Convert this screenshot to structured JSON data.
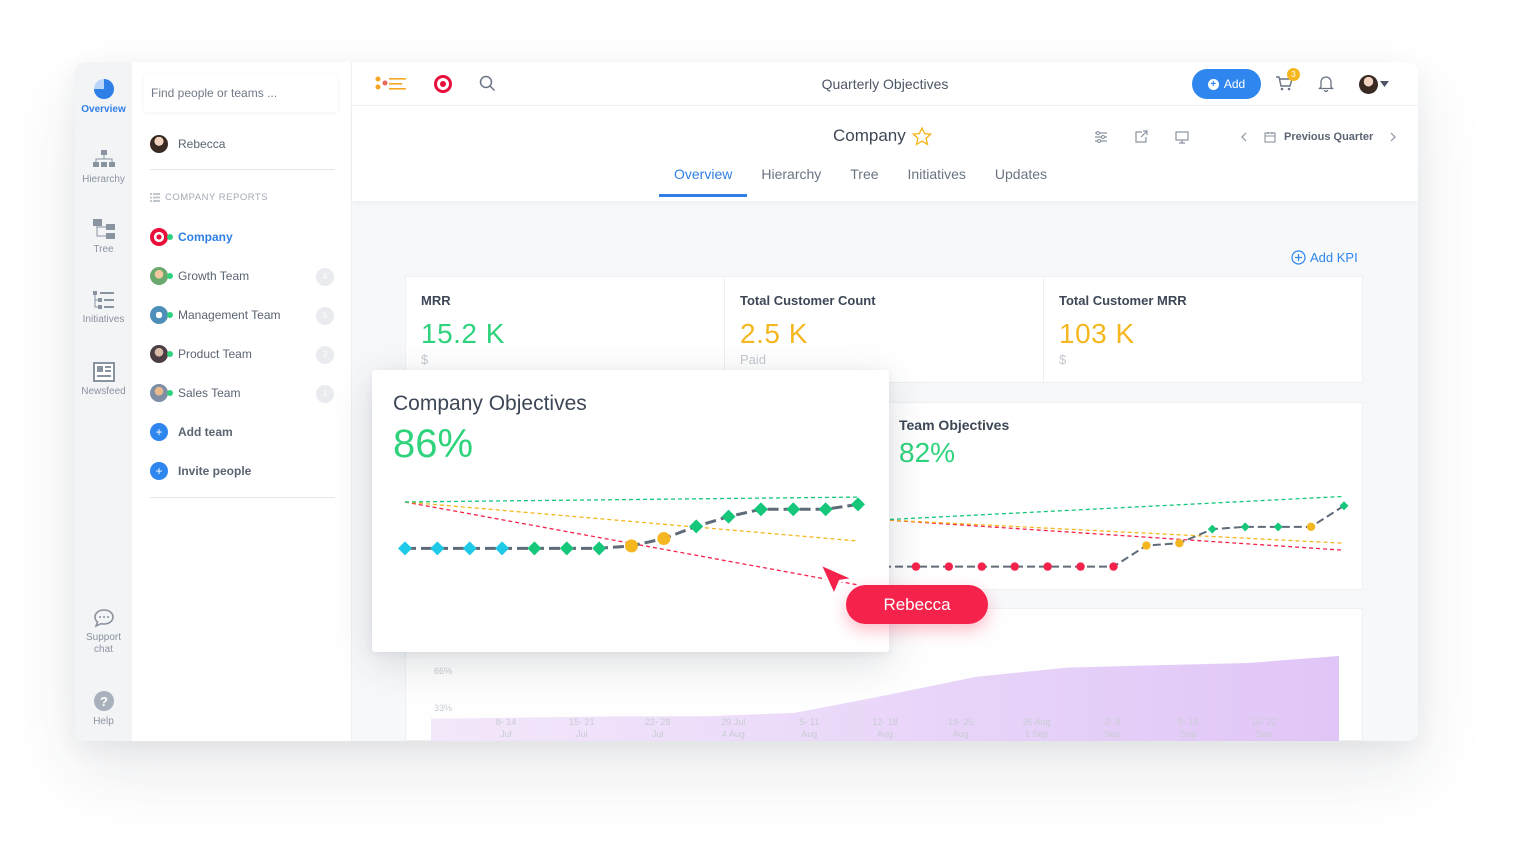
{
  "rail": [
    {
      "label": "Overview",
      "icon": "pie-chart-icon",
      "active": true
    },
    {
      "label": "Hierarchy",
      "icon": "org-chart-icon"
    },
    {
      "label": "Tree",
      "icon": "tree-icon"
    },
    {
      "label": "Initiatives",
      "icon": "list-tree-icon"
    },
    {
      "label": "Newsfeed",
      "icon": "newspaper-icon"
    },
    {
      "label": "Support chat",
      "icon": "chat-bubble-icon"
    },
    {
      "label": "Help",
      "icon": "help-icon"
    }
  ],
  "sidebar": {
    "search_placeholder": "Find people or teams ...",
    "user": "Rebecca",
    "section": "COMPANY REPORTS",
    "teams": [
      {
        "label": "Company",
        "active": true
      },
      {
        "label": "Growth Team",
        "count": "4"
      },
      {
        "label": "Management Team",
        "count": "5"
      },
      {
        "label": "Product Team",
        "count": "3"
      },
      {
        "label": "Sales Team",
        "count": "1"
      }
    ],
    "add_team": "Add team",
    "invite": "Invite people"
  },
  "topbar": {
    "title": "Quarterly Objectives",
    "add_label": "Add",
    "cart_badge": "3"
  },
  "header": {
    "company": "Company",
    "tabs": [
      "Overview",
      "Hierarchy",
      "Tree",
      "Initiatives",
      "Updates"
    ],
    "active_tab": "Overview",
    "period": "Previous Quarter"
  },
  "add_kpi": "Add KPI",
  "kpis": [
    {
      "label": "MRR",
      "value": "15.2 K",
      "sub": "$",
      "color": "#2ed37c"
    },
    {
      "label": "Total Customer Count",
      "value": "2.5 K",
      "sub": "Paid",
      "color": "#f5b720"
    },
    {
      "label": "Total Customer MRR",
      "value": "103 K",
      "sub": "$",
      "color": "#f5b720"
    }
  ],
  "company_objectives": {
    "title": "Company Objectives",
    "value": "86%"
  },
  "team_objectives": {
    "title": "Team Objectives",
    "value": "82%"
  },
  "cursor_label": "Rebecca",
  "chart_data": [
    {
      "type": "line",
      "title": "Company Objectives",
      "values": [
        0.52,
        0.52,
        0.52,
        0.52,
        0.52,
        0.52,
        0.52,
        0.53,
        0.56,
        0.61,
        0.65,
        0.68,
        0.68,
        0.68,
        0.7
      ],
      "status": [
        "cyan",
        "cyan",
        "cyan",
        "cyan",
        "green",
        "green",
        "green",
        "yellow",
        "yellow",
        "green",
        "green",
        "green",
        "green",
        "green",
        "green"
      ],
      "colors": {
        "cyan": "#1fc9e8",
        "green": "#14c77a",
        "yellow": "#f5b720",
        "red": "#f5224c"
      },
      "ylim": [
        0.3,
        0.8
      ]
    },
    {
      "type": "line",
      "title": "Team Objectives",
      "values": [
        0.3,
        0.3,
        0.3,
        0.3,
        0.3,
        0.3,
        0.3,
        0.3,
        0.39,
        0.4,
        0.46,
        0.47,
        0.47,
        0.47,
        0.56
      ],
      "status": [
        "red",
        "red",
        "red",
        "red",
        "red",
        "red",
        "red",
        "red",
        "yellow",
        "yellow",
        "green",
        "green",
        "green",
        "yellow",
        "green"
      ],
      "colors": {
        "green": "#14c77a",
        "yellow": "#f5b720",
        "red": "#f5224c"
      },
      "ylim": [
        0.2,
        0.7
      ]
    },
    {
      "type": "area",
      "y_ticks": [
        "66%",
        "33%"
      ],
      "categories": [
        [
          "8- 14",
          "Jul"
        ],
        [
          "15- 21",
          "Jul"
        ],
        [
          "22- 28",
          "Jul"
        ],
        [
          "29 Jul",
          "4 Aug"
        ],
        [
          "5- 11",
          "Aug"
        ],
        [
          "12- 18",
          "Aug"
        ],
        [
          "19- 25",
          "Aug"
        ],
        [
          "26 Aug",
          "1 Sep"
        ],
        [
          "2- 8",
          "Sep"
        ],
        [
          "9- 15",
          "Sep"
        ],
        [
          "16- 22",
          "Sep"
        ]
      ],
      "values": [
        0.2,
        0.21,
        0.22,
        0.22,
        0.25,
        0.4,
        0.56,
        0.64,
        0.66,
        0.68,
        0.74
      ],
      "colors": {
        "fill": "#d8b6f5"
      }
    }
  ]
}
